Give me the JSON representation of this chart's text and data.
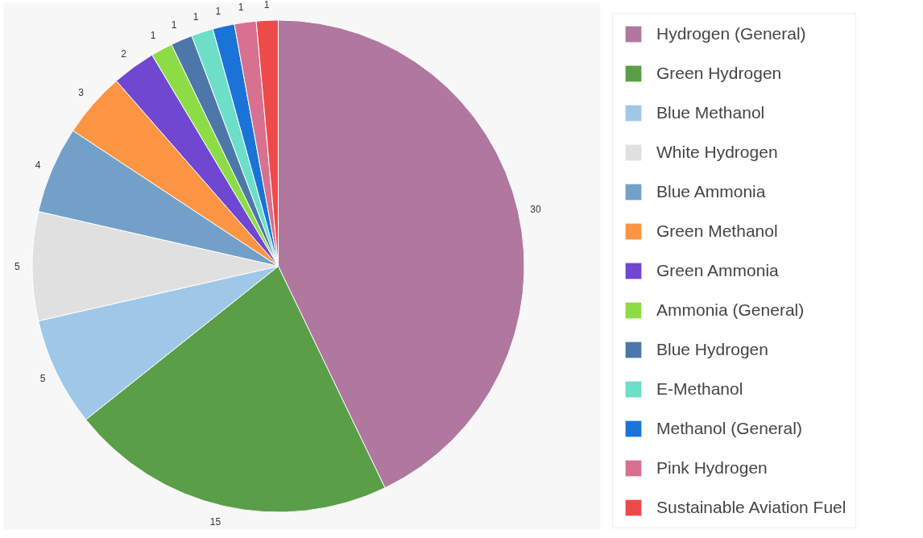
{
  "chart_data": {
    "type": "pie",
    "categories": [
      "Hydrogen (General)",
      "Green Hydrogen",
      "Blue Methanol",
      "White Hydrogen",
      "Blue Ammonia",
      "Green Methanol",
      "Green Ammonia",
      "Ammonia (General)",
      "Blue Hydrogen",
      "E-Methanol",
      "Methanol (General)",
      "Pink Hydrogen",
      "Sustainable Aviation Fuel"
    ],
    "values": [
      30,
      15,
      5,
      5,
      4,
      3,
      2,
      1,
      1,
      1,
      1,
      1,
      1
    ],
    "colors": [
      "#b0779f",
      "#5a9e48",
      "#9fc8e8",
      "#e0e0e0",
      "#72a0c9",
      "#fb9544",
      "#6f47d1",
      "#8ddc45",
      "#4d77a8",
      "#6ddec7",
      "#1a73d6",
      "#d7718f",
      "#ee4a4a"
    ],
    "data_labels": true,
    "legend": "right"
  }
}
